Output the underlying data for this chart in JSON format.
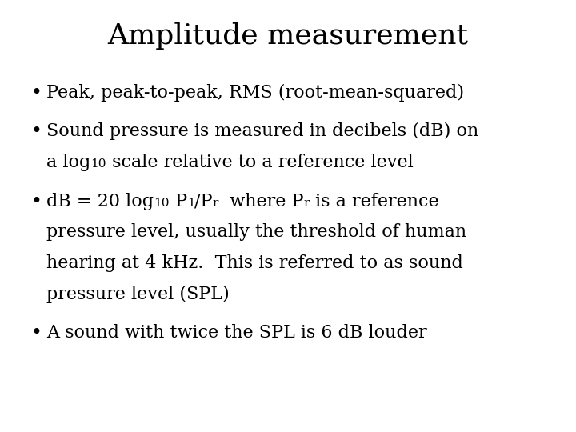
{
  "title": "Amplitude measurement",
  "title_fontsize": 26,
  "background_color": "#ffffff",
  "text_color": "#000000",
  "bullet_fontsize": 16,
  "sub_fontsize": 11,
  "bullet1_text": "Peak, peak-to-peak, RMS (root-mean-squared)",
  "bullet2_line1": "Sound pressure is measured in decibels (dB) on",
  "bullet2_line2_pre": "a log",
  "bullet2_sub": "10",
  "bullet2_line2_post": " scale relative to a reference level",
  "bullet3_line1_pre": "dB = 20 log",
  "bullet3_sub1": "10",
  "bullet3_line1_mid1": " P",
  "bullet3_sub2": "1",
  "bullet3_line1_mid2": "/P",
  "bullet3_sub3": "r",
  "bullet3_line1_mid3": "  where P",
  "bullet3_sub4": "r",
  "bullet3_line1_post": " is a reference",
  "bullet3_line2": "pressure level, usually the threshold of human",
  "bullet3_line3": "hearing at 4 kHz.  This is referred to as sound",
  "bullet3_line4": "pressure level (SPL)",
  "bullet4_text": "A sound with twice the SPL is 6 dB louder"
}
